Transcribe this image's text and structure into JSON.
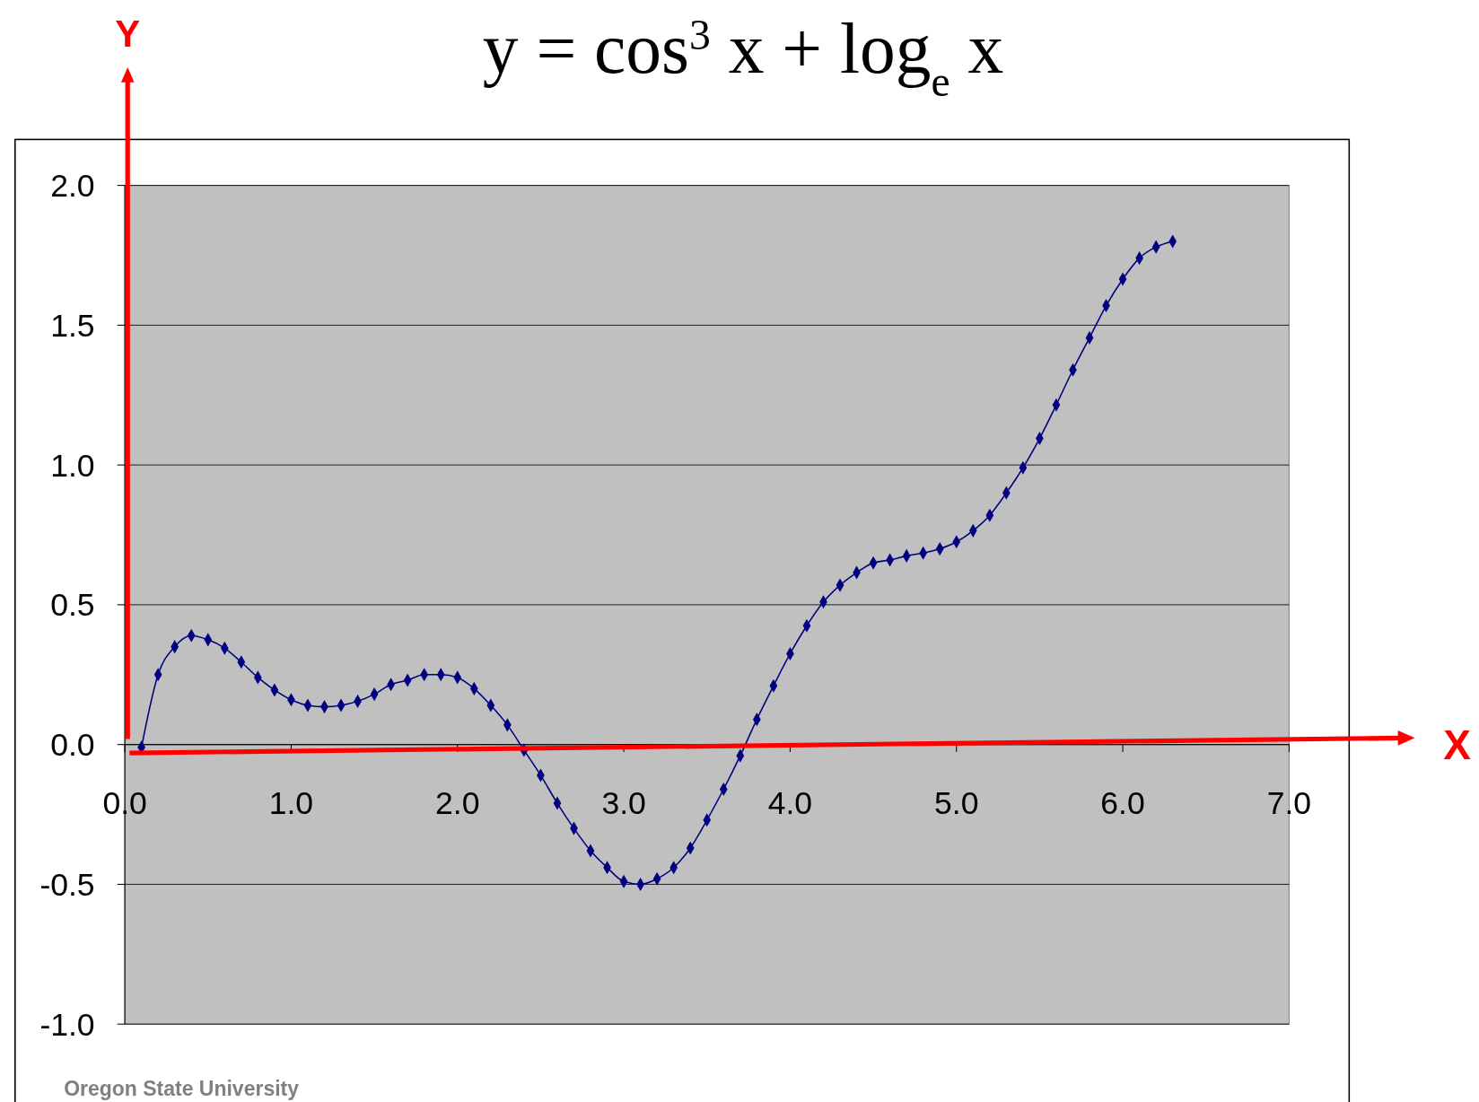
{
  "chart_data": {
    "type": "line",
    "title": "y = cos$^{3}$ x + log$_{e}$ x",
    "xlabel": "X",
    "ylabel": "Y",
    "x": [
      0.1,
      0.2,
      0.3,
      0.4,
      0.5,
      0.6,
      0.7,
      0.8,
      0.9,
      1.0,
      1.1,
      1.2,
      1.3,
      1.4,
      1.5,
      1.6,
      1.7,
      1.8,
      1.9,
      2.0,
      2.1,
      2.2,
      2.3,
      2.4,
      2.5,
      2.6,
      2.7,
      2.8,
      2.9,
      3.0,
      3.1,
      3.2,
      3.3,
      3.4,
      3.5,
      3.6,
      3.7,
      3.8,
      3.9,
      4.0,
      4.1,
      4.2,
      4.3,
      4.4,
      4.5,
      4.6,
      4.7,
      4.8,
      4.9,
      5.0,
      5.1,
      5.2,
      5.3,
      5.4,
      5.5,
      5.6,
      5.7,
      5.8,
      5.9,
      6.0,
      6.1,
      6.2,
      6.3
    ],
    "series": [
      {
        "color": "#000080",
        "values": [
          -0.01,
          0.25,
          0.35,
          0.39,
          0.375,
          0.345,
          0.295,
          0.24,
          0.195,
          0.16,
          0.14,
          0.135,
          0.14,
          0.155,
          0.18,
          0.215,
          0.23,
          0.25,
          0.25,
          0.24,
          0.2,
          0.14,
          0.07,
          -0.02,
          -0.11,
          -0.21,
          -0.3,
          -0.38,
          -0.44,
          -0.49,
          -0.5,
          -0.48,
          -0.44,
          -0.37,
          -0.27,
          -0.16,
          -0.04,
          0.09,
          0.21,
          0.325,
          0.425,
          0.51,
          0.57,
          0.615,
          0.65,
          0.66,
          0.675,
          0.685,
          0.7,
          0.725,
          0.765,
          0.82,
          0.9,
          0.99,
          1.095,
          1.215,
          1.34,
          1.455,
          1.57,
          1.665,
          1.74,
          1.78,
          1.8
        ]
      }
    ],
    "xlim": [
      0,
      7
    ],
    "ylim": [
      -1,
      2
    ],
    "xticks": [
      {
        "value": 0,
        "label": "0.0"
      },
      {
        "value": 1,
        "label": "1.0"
      },
      {
        "value": 2,
        "label": "2.0"
      },
      {
        "value": 3,
        "label": "3.0"
      },
      {
        "value": 4,
        "label": "4.0"
      },
      {
        "value": 5,
        "label": "5.0"
      },
      {
        "value": 6,
        "label": "6.0"
      },
      {
        "value": 7,
        "label": "7.0"
      }
    ],
    "yticks": [
      {
        "value": -1,
        "label": "-1.0"
      },
      {
        "value": -0.5,
        "label": "-0.5"
      },
      {
        "value": 0,
        "label": "0.0"
      },
      {
        "value": 0.5,
        "label": "0.5"
      },
      {
        "value": 1,
        "label": "1.0"
      },
      {
        "value": 1.5,
        "label": "1.5"
      },
      {
        "value": 2,
        "label": "2.0"
      }
    ],
    "grid": "y",
    "marker": "diamond",
    "line_style": "solid",
    "annotations": [
      "Oregon State University"
    ]
  }
}
